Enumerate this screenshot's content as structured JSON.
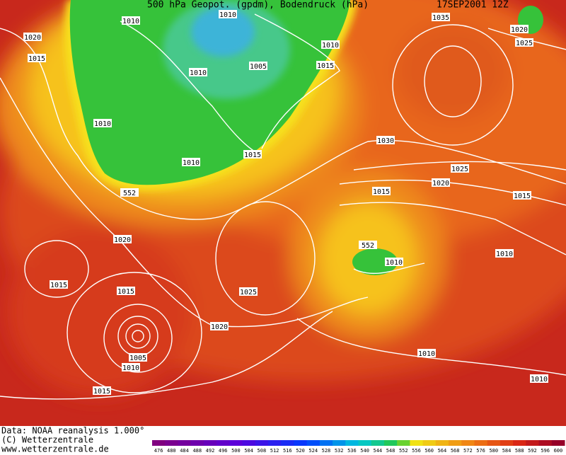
{
  "header": {
    "title": "500 hPa Geopot. (gpdm), Bodendruck (hPa)",
    "date": "17SEP2001 12Z"
  },
  "map": {
    "labels": [
      1010,
      1010,
      1020,
      1015,
      1010,
      1015,
      1005,
      1010,
      1010,
      1010,
      1015,
      552,
      1035,
      1020,
      1025,
      1030,
      1025,
      1020,
      1015,
      1015,
      1020,
      552,
      1010,
      1010,
      1015,
      1015,
      1025,
      1020,
      1005,
      1010,
      1010,
      1010,
      1015
    ]
  },
  "footer": {
    "source": "Data: NOAA reanalysis 1.000°",
    "copyright": "(C) Wetterzentrale",
    "website": "www.wetterzentrale.de"
  },
  "colorbar": {
    "labels": [
      476,
      480,
      484,
      488,
      492,
      496,
      500,
      504,
      508,
      512,
      516,
      520,
      524,
      528,
      532,
      536,
      540,
      544,
      548,
      552,
      556,
      560,
      564,
      568,
      572,
      576,
      580,
      584,
      588,
      592,
      596,
      600
    ]
  }
}
